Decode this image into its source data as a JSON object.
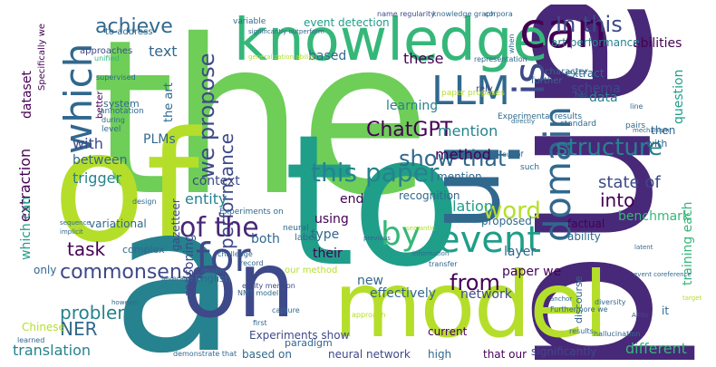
{
  "words": [
    "the",
    "and",
    "to",
    "of",
    "a",
    "on",
    "model",
    "in",
    "knowledge",
    "can",
    "which",
    "LLM",
    "is",
    "event",
    "domain",
    "for",
    "by",
    "this paper",
    "In this",
    "structure",
    "achieve",
    "we propose",
    "show that",
    "word",
    "from",
    "commonsense",
    "task",
    "problem",
    "NER",
    "translation",
    "performance",
    "entity",
    "text",
    "dataset",
    "context",
    "ChatGPT",
    "of the",
    "method",
    "mention",
    "state of",
    "into",
    "benchmark",
    "relation",
    "trigger",
    "extraction",
    "between",
    "with",
    "based",
    "these",
    "schema",
    "data",
    "learning",
    "question",
    "abilities",
    "art performance",
    "event detection",
    "paper we",
    "effectively",
    "network",
    "layer",
    "factual",
    "ability",
    "different",
    "significantly",
    "neural network",
    "high",
    "that our",
    "based on",
    "Experiments show",
    "reasoning",
    "only",
    "using",
    "type",
    "their",
    "new",
    "end",
    "proposed",
    "both",
    "recognition",
    "training each",
    "PLMs",
    "which can",
    "the art",
    "gazetteer",
    "variational",
    "current",
    "Chinese",
    "paradigm",
    "English",
    "mention",
    "complex",
    "system",
    "approaches",
    "better",
    "unified",
    "to address",
    "Specifically we",
    "knowledge graph",
    "corpora",
    "character",
    "extract",
    "further",
    "rely",
    "paper proposes",
    "name regularity",
    "variable",
    "Experimental results",
    "our method",
    "neural",
    "label",
    "entity mention",
    "Experiments on",
    "NMT model",
    "event coreference",
    "hallucination",
    "results",
    "discourse",
    "diversity",
    "ARNs",
    "latent",
    "transfer",
    "approach",
    "capture",
    "demonstrate that",
    "learned",
    "it",
    "target",
    "such",
    "directly",
    "standard",
    "pairs",
    "then",
    "with",
    "representation",
    "generalization ability",
    "significantly outperform",
    "annotation",
    "supervised",
    "during",
    "level",
    "challenge",
    "record",
    "design",
    "region",
    "sequence",
    "implicit",
    "leverage",
    "however",
    "first",
    "previous",
    "semantic",
    "information",
    "Furthermore we",
    "anchor",
    "out of",
    "when",
    "has",
    "line",
    "mechanism"
  ],
  "palette": [
    "#440154",
    "#482878",
    "#3e4989",
    "#31688e",
    "#26828e",
    "#1f9e89",
    "#35b779",
    "#6ece58",
    "#b5de2b",
    "#fde725"
  ]
}
